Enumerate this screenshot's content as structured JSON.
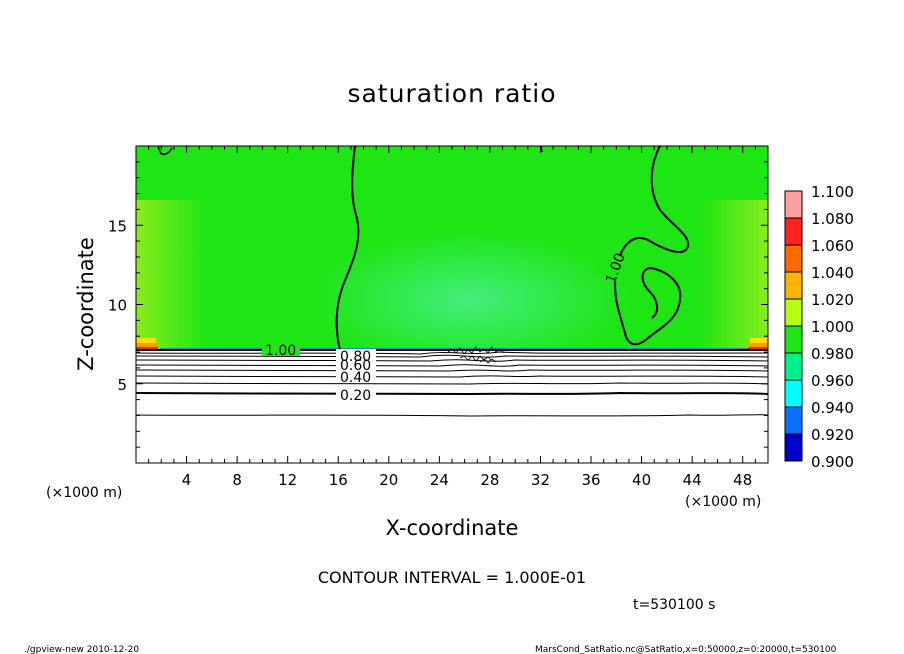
{
  "chart_data": {
    "type": "heatmap",
    "title": "saturation ratio",
    "xlabel": "X-coordinate",
    "ylabel": "Z-coordinate",
    "x_unit": "(×1000 m)",
    "y_unit": "(×1000 m)",
    "xlim": [
      0,
      50
    ],
    "ylim": [
      0,
      20
    ],
    "x_ticks": [
      4,
      8,
      12,
      16,
      20,
      24,
      28,
      32,
      36,
      40,
      44,
      48
    ],
    "y_ticks": [
      5,
      10,
      15
    ],
    "colorbar": {
      "levels": [
        "1.100",
        "1.080",
        "1.060",
        "1.040",
        "1.020",
        "1.000",
        "0.980",
        "0.960",
        "0.940",
        "0.920",
        "0.900"
      ],
      "colors": [
        "#ffa0a0",
        "#ff2020",
        "#ff6a00",
        "#ffb400",
        "#b4ff14",
        "#1ee614",
        "#00f08c",
        "#00ffff",
        "#0a70ff",
        "#0000c8",
        "#7800c8"
      ]
    },
    "contour_labels": [
      {
        "text": "1.00",
        "x": 11,
        "z": 7.0
      },
      {
        "text": "0.80",
        "x": 18,
        "z": 6.8
      },
      {
        "text": "0.60",
        "x": 18,
        "z": 6.1
      },
      {
        "text": "0.40",
        "x": 18,
        "z": 5.5
      },
      {
        "text": "0.20",
        "x": 18,
        "z": 4.2
      },
      {
        "text": "1.00",
        "x": 38,
        "z": 12.2
      }
    ],
    "contour_interval": "CONTOUR INTERVAL = 1.000E-01",
    "time_label": "t=530100 s"
  },
  "footer": {
    "left": "./gpview-new   2010-12-20",
    "right": "MarsCond_SatRatio.nc@SatRatio,x=0:50000,z=0:20000,t=530100"
  }
}
